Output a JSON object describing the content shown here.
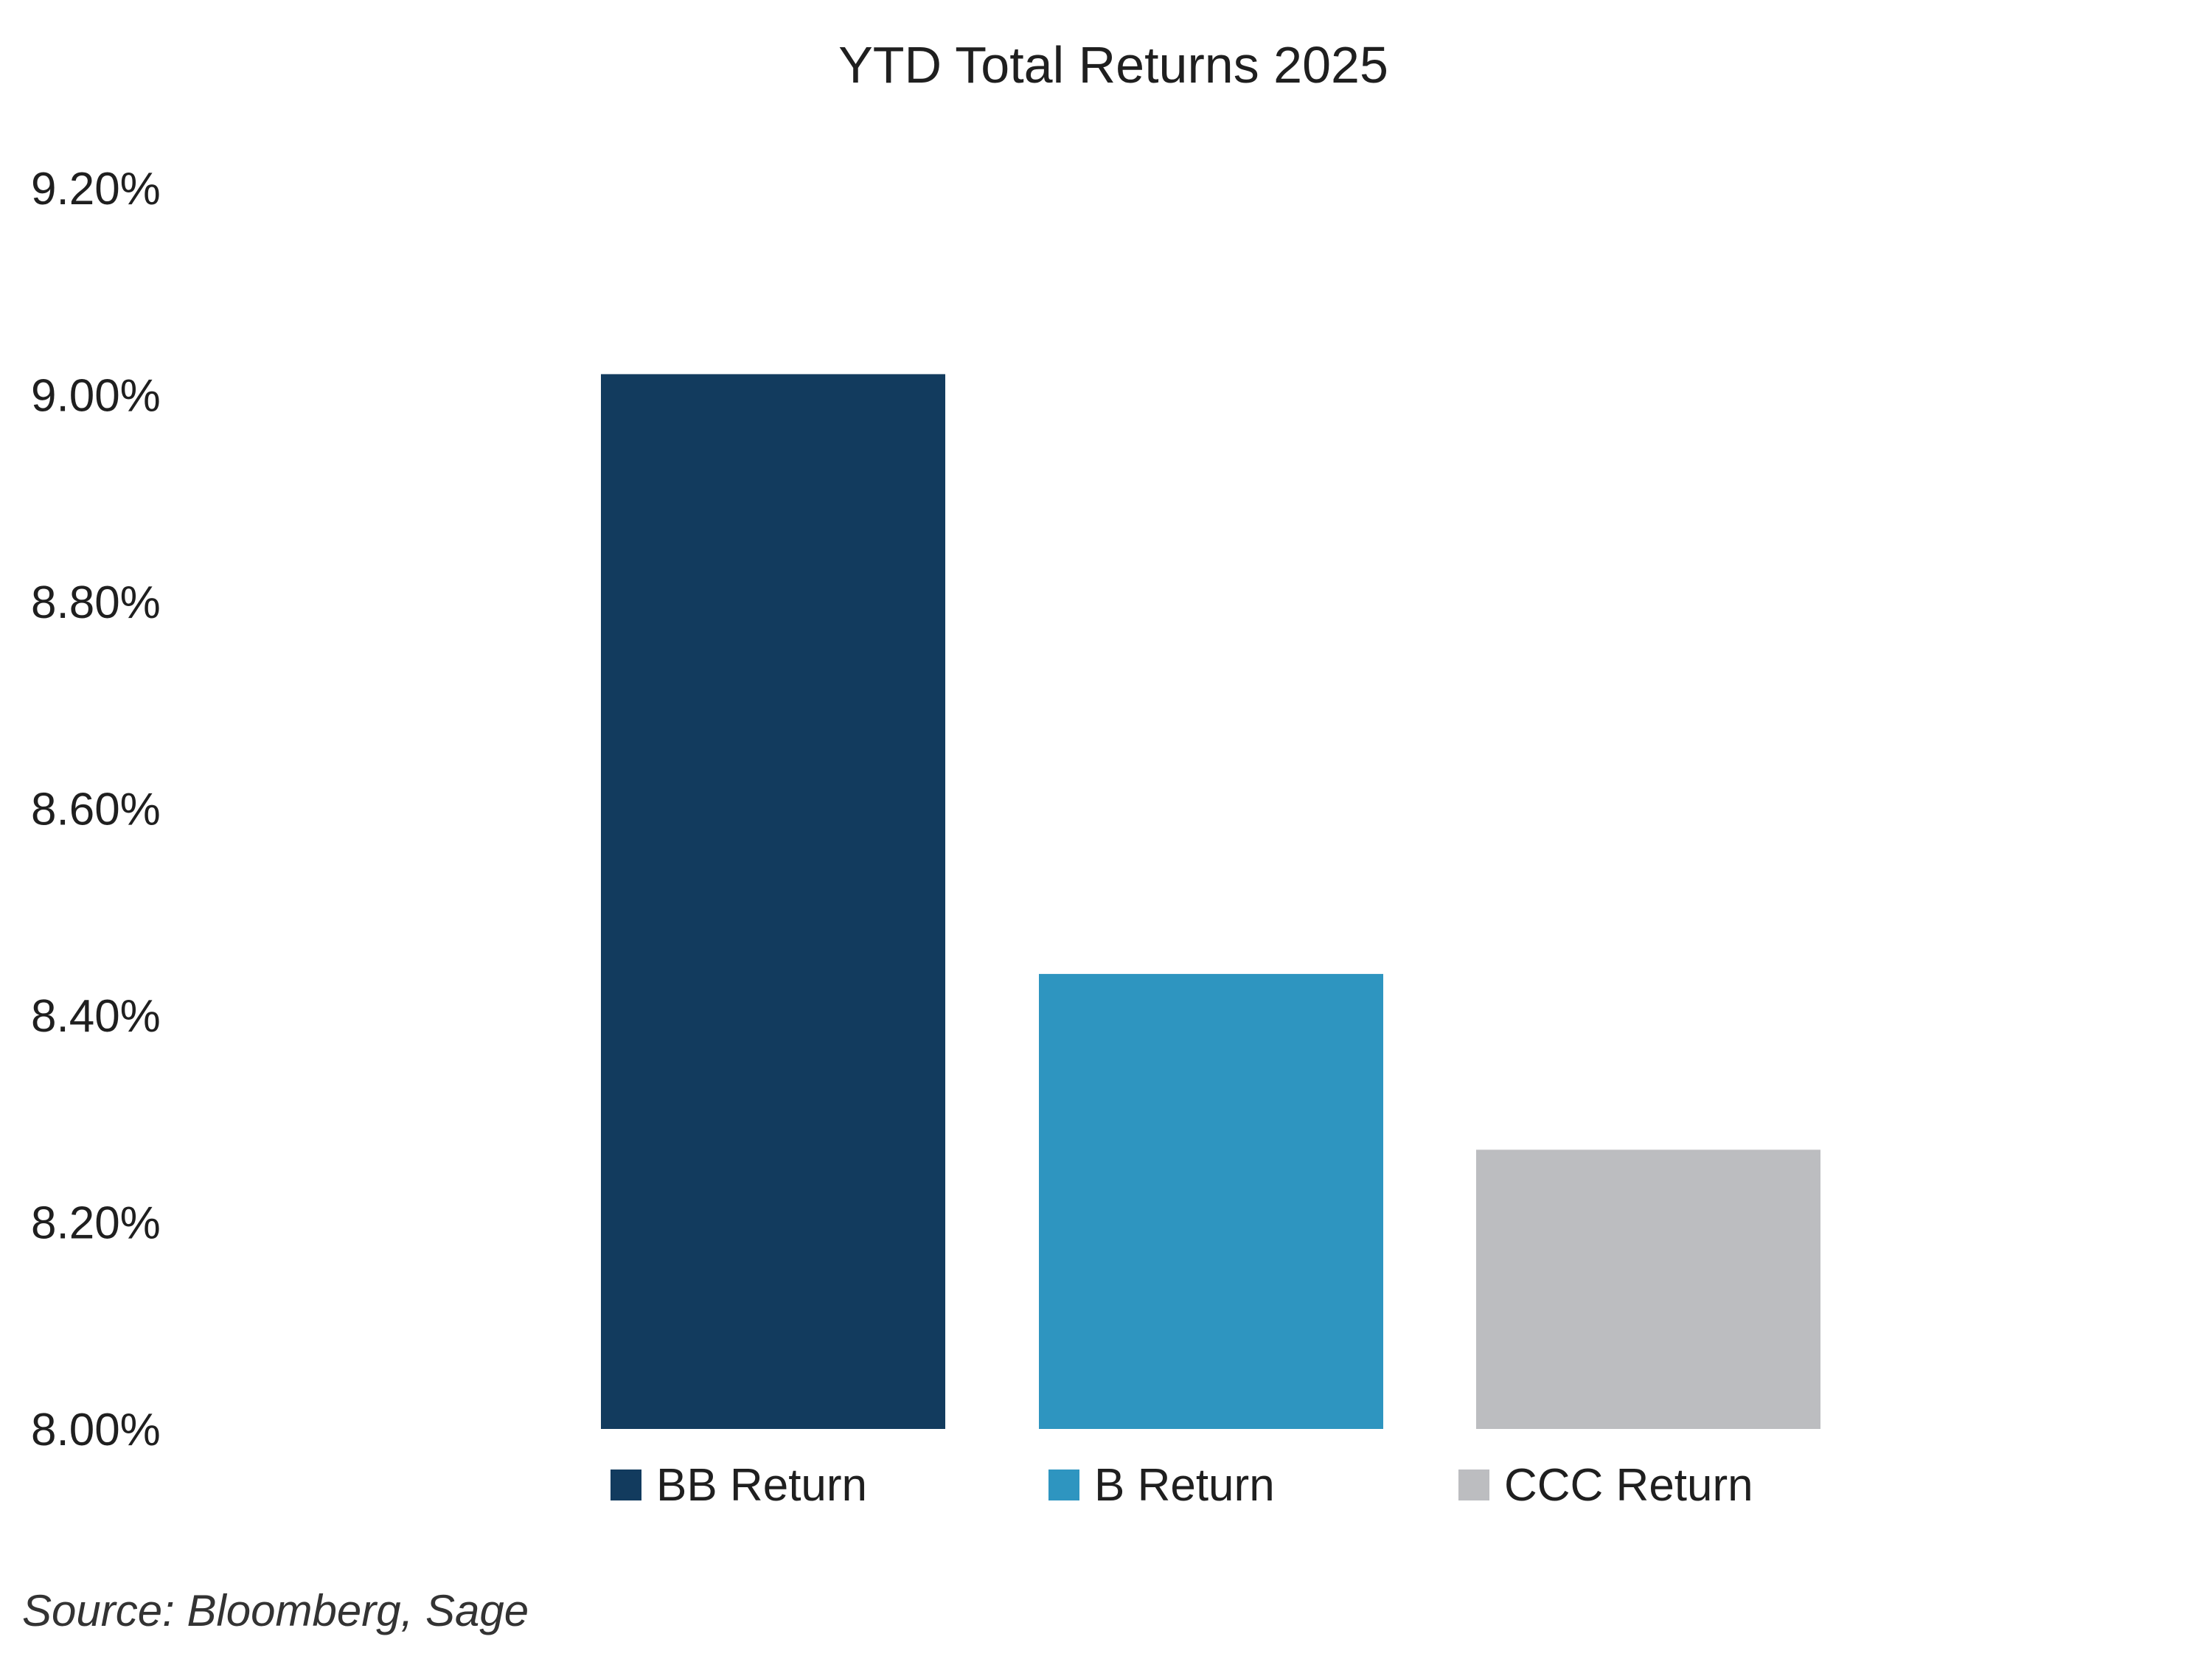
{
  "source_note": "Source: Bloomberg, Sage",
  "chart_data": {
    "type": "bar",
    "title": "YTD Total Returns 2025",
    "xlabel": "",
    "ylabel": "",
    "ylim": [
      8.0,
      9.2
    ],
    "y_ticks": [
      8.0,
      8.2,
      8.4,
      8.6,
      8.8,
      9.0,
      9.2
    ],
    "y_tick_labels": [
      "8.00%",
      "8.20%",
      "8.40%",
      "8.60%",
      "8.80%",
      "9.00%",
      "9.20%"
    ],
    "series": [
      {
        "name": "BB Return",
        "value": 9.02,
        "color": "#123b5e"
      },
      {
        "name": "B Return",
        "value": 8.44,
        "color": "#2e95c0"
      },
      {
        "name": "CCC Return",
        "value": 8.27,
        "color": "#bcbdc0"
      }
    ],
    "legend_position": "bottom",
    "grid": false
  }
}
